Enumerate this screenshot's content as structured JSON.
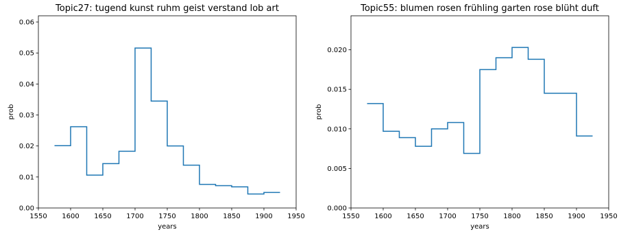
{
  "chart_data": [
    {
      "type": "line",
      "step": "post",
      "title": "Topic27: tugend kunst ruhm geist verstand lob art",
      "xlabel": "years",
      "ylabel": "prob",
      "xlim": [
        1550,
        1950
      ],
      "ylim": [
        0,
        0.062
      ],
      "xticks": [
        1550,
        1600,
        1650,
        1700,
        1750,
        1800,
        1850,
        1900,
        1950
      ],
      "xtick_labels": [
        "1550",
        "1600",
        "1650",
        "1700",
        "1750",
        "1800",
        "1850",
        "1900",
        "1950"
      ],
      "yticks": [
        0,
        0.01,
        0.02,
        0.03,
        0.04,
        0.05,
        0.06
      ],
      "ytick_labels": [
        "0.00",
        "0.01",
        "0.02",
        "0.03",
        "0.04",
        "0.05",
        "0.06"
      ],
      "grid": false,
      "color": "#1f77b4",
      "series": [
        {
          "x": [
            1575,
            1600,
            1625,
            1650,
            1675,
            1700,
            1725,
            1750,
            1775,
            1800,
            1825,
            1850,
            1875,
            1900,
            1925
          ],
          "values": [
            0.0201,
            0.0262,
            0.0106,
            0.0143,
            0.0183,
            0.0516,
            0.0345,
            0.02,
            0.0138,
            0.0076,
            0.0072,
            0.0068,
            0.0045,
            0.005,
            0.005
          ]
        }
      ]
    },
    {
      "type": "line",
      "step": "post",
      "title": "Topic55: blumen rosen frühling garten rose blüht duft",
      "xlabel": "years",
      "ylabel": "prob",
      "xlim": [
        1550,
        1950
      ],
      "ylim": [
        0,
        0.0243
      ],
      "xticks": [
        1550,
        1600,
        1650,
        1700,
        1750,
        1800,
        1850,
        1900,
        1950
      ],
      "xtick_labels": [
        "1550",
        "1600",
        "1650",
        "1700",
        "1750",
        "1800",
        "1850",
        "1900",
        "1950"
      ],
      "yticks": [
        0,
        0.005,
        0.01,
        0.015,
        0.02
      ],
      "ytick_labels": [
        "0.000",
        "0.005",
        "0.010",
        "0.015",
        "0.020"
      ],
      "grid": false,
      "color": "#1f77b4",
      "series": [
        {
          "x": [
            1575,
            1600,
            1625,
            1650,
            1675,
            1700,
            1725,
            1750,
            1775,
            1800,
            1825,
            1850,
            1875,
            1900,
            1925
          ],
          "values": [
            0.0132,
            0.0097,
            0.0089,
            0.0078,
            0.01,
            0.0108,
            0.0069,
            0.0175,
            0.019,
            0.0203,
            0.0188,
            0.0145,
            0.0145,
            0.0091,
            0.0091
          ]
        }
      ]
    }
  ]
}
